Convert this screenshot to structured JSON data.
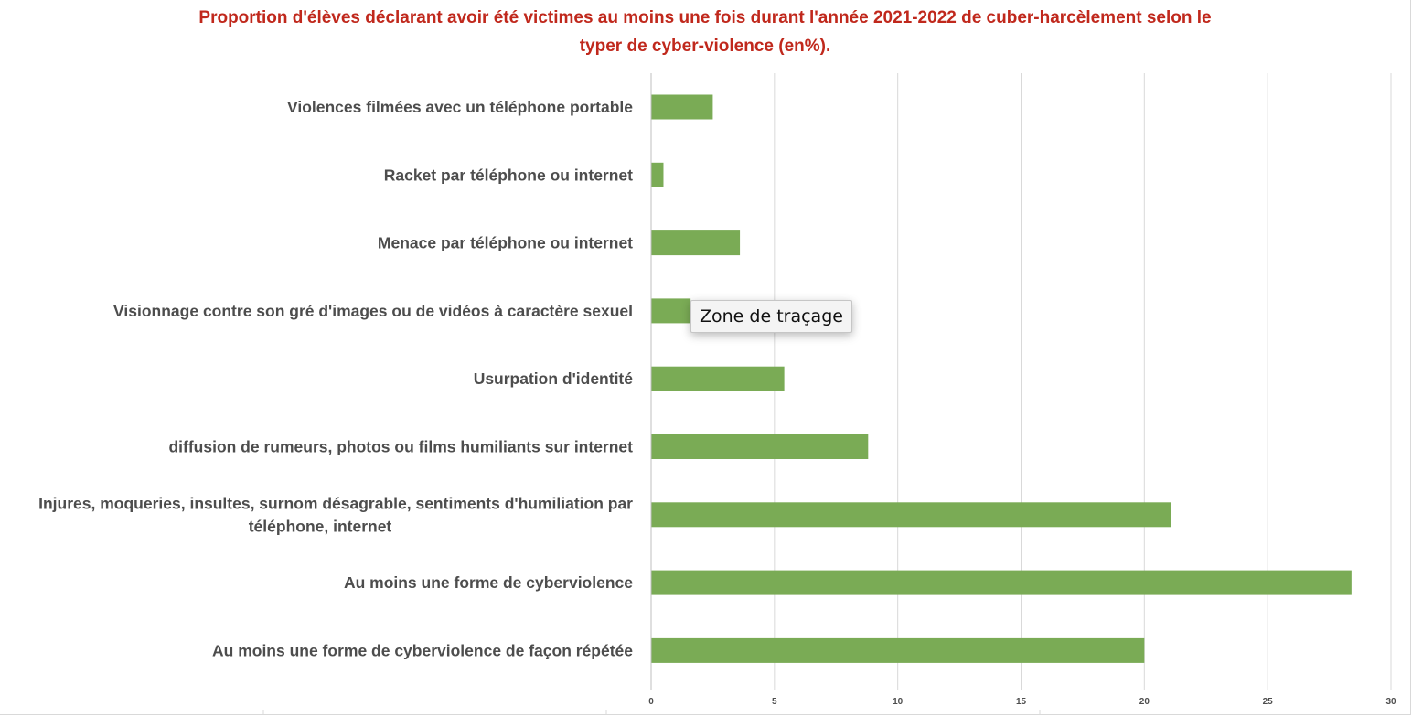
{
  "tooltip": {
    "text": "Zone de traçage"
  },
  "chart_data": {
    "type": "bar",
    "orientation": "horizontal",
    "title_lines": [
      "Proportion d'élèves déclarant avoir été victimes au moins une fois durant l'année 2021-2022 de cuber-harcèlement selon le",
      "typer de cyber-violence (en%)."
    ],
    "categories": [
      [
        "Violences filmées avec un téléphone portable"
      ],
      [
        "Racket par téléphone ou internet"
      ],
      [
        "Menace par téléphone ou internet"
      ],
      [
        "Visionnage contre son gré d'images ou de vidéos à caractère sexuel"
      ],
      [
        "Usurpation d'identité"
      ],
      [
        "diffusion de rumeurs, photos ou films humiliants sur internet"
      ],
      [
        "Injures, moqueries, insultes, surnom désagrable, sentiments d'humiliation par",
        "téléphone, internet"
      ],
      [
        "Au moins une forme de cyberviolence "
      ],
      [
        "Au moins une forme de cyberviolence de façon répétée"
      ]
    ],
    "values": [
      2.5,
      0.5,
      3.6,
      1.6,
      5.4,
      8.8,
      21.1,
      28.4,
      20.0
    ],
    "xlim": [
      0,
      30
    ],
    "xticks": [
      0,
      5,
      10,
      15,
      20,
      25,
      30
    ],
    "grid": true,
    "bar_color": "#7aab55",
    "grid_color": "#d9d9d9"
  }
}
